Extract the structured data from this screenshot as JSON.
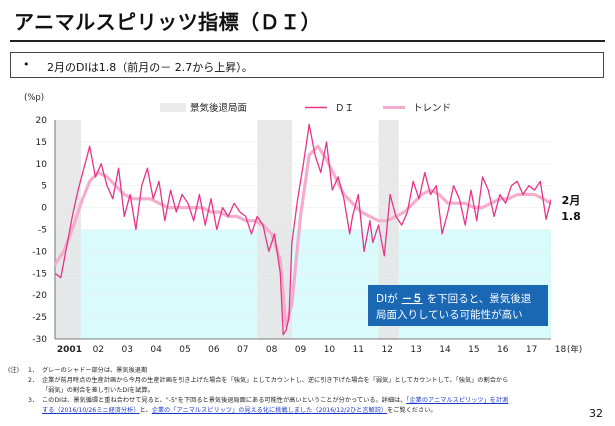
{
  "page": {
    "title": "アニマルスピリッツ指標（ＤＩ）",
    "summary_bullet": "•",
    "summary": "2月のDIは1.8（前月の－ 2.7から上昇）。",
    "page_number": "32"
  },
  "chart_data": {
    "type": "line",
    "y_unit_label": "(%p)",
    "x_unit_label": "(年)",
    "ylim": [
      -30,
      20
    ],
    "yticks": [
      20,
      15,
      10,
      5,
      0,
      -5,
      -10,
      -15,
      -20,
      -25,
      -30
    ],
    "x_ticks": [
      "2001",
      "02",
      "03",
      "04",
      "05",
      "06",
      "07",
      "08",
      "09",
      "10",
      "11",
      "12",
      "13",
      "14",
      "15",
      "16",
      "17",
      "18"
    ],
    "x_start": 2001.0,
    "x_end": 2018.17,
    "threshold": -5,
    "legend": [
      {
        "name": "景気後退局面",
        "kind": "shade",
        "color": "#ebebeb"
      },
      {
        "name": "ＤＩ",
        "kind": "line",
        "color": "#e8338a"
      },
      {
        "name": "トレンド",
        "kind": "line",
        "color": "#f4aecd"
      }
    ],
    "recessions": [
      [
        2001.0,
        2001.9
      ],
      [
        2008.0,
        2009.2
      ],
      [
        2012.2,
        2012.9
      ]
    ],
    "callout": {
      "label": "2月",
      "value": "1.8"
    },
    "annotation": {
      "prefix": "DIが",
      "highlight": "－５",
      "suffix": "を下回ると、景気後退",
      "line2": "局面入りしている可能性が高い"
    },
    "series": [
      {
        "name": "ＤＩ",
        "color": "#e8338a",
        "x": [
          2001.0,
          2001.2,
          2001.4,
          2001.6,
          2001.8,
          2002.0,
          2002.2,
          2002.4,
          2002.6,
          2002.8,
          2003.0,
          2003.2,
          2003.4,
          2003.6,
          2003.8,
          2004.0,
          2004.2,
          2004.4,
          2004.6,
          2004.8,
          2005.0,
          2005.2,
          2005.4,
          2005.6,
          2005.8,
          2006.0,
          2006.2,
          2006.4,
          2006.6,
          2006.8,
          2007.0,
          2007.2,
          2007.4,
          2007.6,
          2007.8,
          2008.0,
          2008.2,
          2008.4,
          2008.6,
          2008.8,
          2008.9,
          2009.0,
          2009.1,
          2009.2,
          2009.4,
          2009.6,
          2009.8,
          2010.0,
          2010.2,
          2010.4,
          2010.6,
          2010.8,
          2011.0,
          2011.2,
          2011.3,
          2011.5,
          2011.7,
          2011.9,
          2012.0,
          2012.2,
          2012.4,
          2012.6,
          2012.8,
          2013.0,
          2013.2,
          2013.4,
          2013.6,
          2013.8,
          2014.0,
          2014.2,
          2014.4,
          2014.6,
          2014.8,
          2015.0,
          2015.2,
          2015.4,
          2015.6,
          2015.8,
          2016.0,
          2016.2,
          2016.4,
          2016.6,
          2016.8,
          2017.0,
          2017.2,
          2017.4,
          2017.6,
          2017.8,
          2018.0,
          2018.17
        ],
        "values": [
          -15,
          -16,
          -9,
          -2,
          4,
          9,
          14,
          7,
          10,
          5,
          2,
          9,
          -2,
          3,
          -5,
          5,
          9,
          2,
          6,
          -3,
          4,
          -1,
          3,
          1,
          -3,
          3,
          -4,
          2,
          -5,
          0,
          -2,
          1,
          -1,
          -2,
          -6,
          -2,
          -4,
          -10,
          -6,
          -15,
          -29,
          -28,
          -25,
          -8,
          2,
          10,
          19,
          12,
          8,
          15,
          4,
          7,
          2,
          -6,
          -2,
          3,
          -10,
          -3,
          -8,
          -4,
          -11,
          3,
          -2,
          -4,
          -1,
          6,
          2,
          8,
          3,
          5,
          -6,
          -1,
          5,
          2,
          -4,
          4,
          -3,
          7,
          4,
          -2,
          3,
          1,
          5,
          6,
          3,
          5,
          4,
          6,
          -2.7,
          1.8
        ]
      },
      {
        "name": "トレンド",
        "color": "#f4aecd",
        "x": [
          2001.0,
          2001.3,
          2001.6,
          2001.9,
          2002.2,
          2002.5,
          2002.8,
          2003.1,
          2003.4,
          2003.7,
          2004.0,
          2004.3,
          2004.6,
          2004.9,
          2005.2,
          2005.5,
          2005.8,
          2006.1,
          2006.4,
          2006.7,
          2007.0,
          2007.3,
          2007.6,
          2007.9,
          2008.2,
          2008.5,
          2008.8,
          2009.0,
          2009.2,
          2009.5,
          2009.8,
          2010.1,
          2010.4,
          2010.7,
          2011.0,
          2011.3,
          2011.6,
          2011.9,
          2012.2,
          2012.5,
          2012.8,
          2013.1,
          2013.4,
          2013.7,
          2014.0,
          2014.3,
          2014.6,
          2014.9,
          2015.2,
          2015.5,
          2015.8,
          2016.1,
          2016.4,
          2016.7,
          2017.0,
          2017.3,
          2017.6,
          2017.9,
          2018.17
        ],
        "values": [
          -13,
          -10,
          -5,
          1,
          6,
          8,
          7,
          5,
          3,
          2,
          2,
          2,
          1,
          0,
          0,
          0,
          0,
          0,
          -1,
          -1,
          -2,
          -2,
          -3,
          -3,
          -4,
          -6,
          -12,
          -27,
          -22,
          -2,
          12,
          14,
          11,
          7,
          3,
          1,
          -1,
          -2,
          -3,
          -3,
          -2,
          -1,
          1,
          3,
          4,
          3,
          1,
          1,
          1,
          0,
          0,
          1,
          2,
          2,
          3,
          3,
          3,
          2,
          1
        ]
      }
    ]
  },
  "notes": {
    "label": "(注)",
    "n1": "1．",
    "t1": "グレーのシャドー部分は、景気後退期",
    "n2": "2．",
    "t2a": "企業が前月時点の生産計画から今月の生産計画を引き上げた場合を「強気」としてカウントし、逆に引き下げた場合を「弱気」としてカウントして、「強気」の割合から",
    "t2b": "「弱気」の割合を差し引いたDIを試算。",
    "n3": "3．",
    "t3a": "このDIは、景気循環と重ね合わせて見ると、\"-5\"を下回ると景気後退局面にある可能性が高いということが分かっている。詳細は、",
    "link1": "「企業のアニマルスピリッツ」を計測",
    "t3b_link": "する（2016/10/26ミニ経済分析）",
    "t3b_mid": "と、",
    "link2": "企業の「アニマルスピリッツ」の見える化に挑戦しました（2016/12/2ひと言解説）",
    "t3b_end": "をご覧ください。"
  }
}
